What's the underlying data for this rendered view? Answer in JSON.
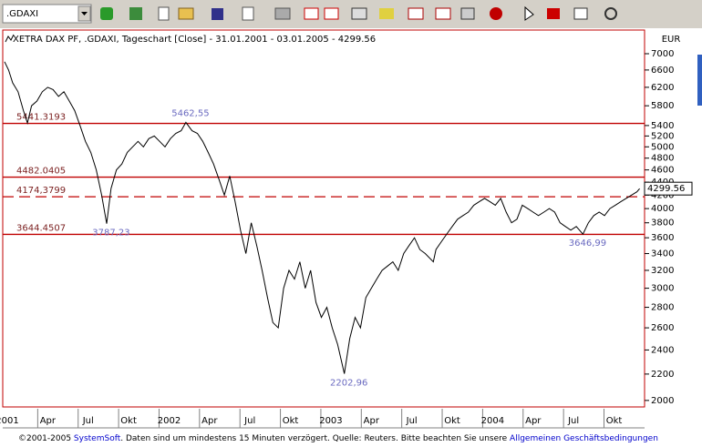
{
  "toolbar": {
    "symbol": ".GDAXI"
  },
  "chart_data": {
    "type": "line",
    "title": "XETRA DAX PF, .GDAXI, Tageschart [Close] - 31.01.2001 - 03.01.2005 - 4299.56",
    "currency": "EUR",
    "color": "#000000",
    "log_scale": true,
    "x": [
      1.0,
      1.3,
      1.6,
      2.0,
      2.4,
      2.7,
      3.0,
      3.4,
      3.8,
      4.2,
      4.6,
      5.0,
      5.4,
      5.8,
      6.2,
      6.6,
      7.0,
      7.4,
      7.8,
      8.2,
      8.57,
      8.9,
      9.3,
      9.7,
      10.1,
      10.5,
      10.9,
      11.3,
      11.7,
      12.1,
      12.5,
      12.9,
      13.3,
      13.7,
      14.1,
      14.45,
      14.9,
      15.3,
      15.7,
      16.1,
      16.5,
      16.9,
      17.3,
      17.7,
      18.1,
      18.5,
      18.9,
      19.3,
      19.7,
      20.1,
      20.5,
      20.9,
      21.3,
      21.7,
      22.1,
      22.5,
      22.9,
      23.3,
      23.7,
      24.1,
      24.5,
      24.9,
      25.3,
      25.7,
      26.2,
      26.6,
      27.0,
      27.4,
      27.8,
      28.2,
      28.6,
      29.0,
      29.4,
      29.8,
      30.2,
      30.6,
      31.0,
      31.4,
      31.8,
      32.2,
      32.8,
      33.0,
      33.4,
      33.8,
      34.2,
      34.6,
      35.0,
      35.4,
      35.8,
      36.2,
      36.6,
      37.0,
      37.4,
      37.8,
      38.2,
      38.6,
      39.0,
      39.4,
      39.8,
      40.2,
      40.6,
      41.0,
      41.4,
      41.8,
      42.2,
      42.6,
      43.0,
      43.4,
      43.9,
      44.3,
      44.7,
      45.1,
      45.5,
      45.9,
      46.3,
      46.7,
      47.1,
      47.5,
      47.9,
      48.1
    ],
    "values": [
      6800,
      6600,
      6300,
      6100,
      5700,
      5450,
      5800,
      5900,
      6100,
      6200,
      6150,
      6000,
      6100,
      5900,
      5700,
      5400,
      5100,
      4900,
      4600,
      4200,
      3787.23,
      4300,
      4600,
      4700,
      4900,
      5000,
      5100,
      5000,
      5150,
      5200,
      5100,
      5000,
      5150,
      5250,
      5300,
      5462.55,
      5300,
      5250,
      5100,
      4900,
      4700,
      4450,
      4200,
      4500,
      4100,
      3700,
      3400,
      3800,
      3500,
      3200,
      2900,
      2650,
      2600,
      3000,
      3200,
      3100,
      3300,
      3000,
      3200,
      2850,
      2700,
      2800,
      2600,
      2450,
      2202.96,
      2500,
      2700,
      2600,
      2900,
      3000,
      3100,
      3200,
      3250,
      3300,
      3200,
      3400,
      3500,
      3600,
      3450,
      3400,
      3300,
      3450,
      3550,
      3650,
      3750,
      3850,
      3900,
      3950,
      4050,
      4100,
      4150,
      4100,
      4050,
      4150,
      3950,
      3800,
      3850,
      4050,
      4000,
      3950,
      3900,
      3950,
      4000,
      3950,
      3800,
      3750,
      3700,
      3750,
      3646.99,
      3800,
      3900,
      3950,
      3900,
      4000,
      4050,
      4100,
      4150,
      4200,
      4250,
      4299.56
    ],
    "last_label": "4299.56",
    "xlim": [
      1,
      48.4
    ],
    "ylim": [
      1960,
      7600
    ],
    "xticks": [
      {
        "value": 1,
        "label": "2001"
      },
      {
        "value": 4,
        "label": "Apr"
      },
      {
        "value": 7,
        "label": "Jul"
      },
      {
        "value": 10,
        "label": "Okt"
      },
      {
        "value": 13,
        "label": "2002"
      },
      {
        "value": 16,
        "label": "Apr"
      },
      {
        "value": 19,
        "label": "Jul"
      },
      {
        "value": 22,
        "label": "Okt"
      },
      {
        "value": 25,
        "label": "2003"
      },
      {
        "value": 28,
        "label": "Apr"
      },
      {
        "value": 31,
        "label": "Jul"
      },
      {
        "value": 34,
        "label": "Okt"
      },
      {
        "value": 37,
        "label": "2004"
      },
      {
        "value": 40,
        "label": "Apr"
      },
      {
        "value": 43,
        "label": "Jul"
      },
      {
        "value": 46,
        "label": "Okt"
      }
    ],
    "yticks": [
      7000,
      6600,
      6200,
      5800,
      5400,
      5200,
      5000,
      4800,
      4600,
      4400,
      4200,
      4000,
      3800,
      3600,
      3400,
      3200,
      3000,
      2800,
      2600,
      2400,
      2200,
      2000
    ],
    "levels": [
      {
        "value": 5441.3193,
        "label": "5441.3193",
        "dashed": false
      },
      {
        "value": 4482.0405,
        "label": "4482.0405",
        "dashed": false
      },
      {
        "value": 4174.3799,
        "label": "4174,3799",
        "dashed": true
      },
      {
        "value": 3644.4507,
        "label": "3644.4507",
        "dashed": false
      }
    ],
    "annotations": [
      {
        "x": 14.45,
        "value": 5462.55,
        "label": "5462,55"
      },
      {
        "x": 8.57,
        "value": 3787.23,
        "label": "3787,23"
      },
      {
        "x": 26.2,
        "value": 2202.96,
        "label": "2202,96"
      },
      {
        "x": 43.9,
        "value": 3646.99,
        "label": "3646,99"
      }
    ]
  },
  "footer": [
    "©2001-2005 ",
    "SystemSoft",
    ". Daten sind um mindestens 15 Minuten verzögert. Quelle: Reuters. Bitte beachten Sie unsere ",
    "Allgemeinen Geschäftsbedingungen"
  ]
}
